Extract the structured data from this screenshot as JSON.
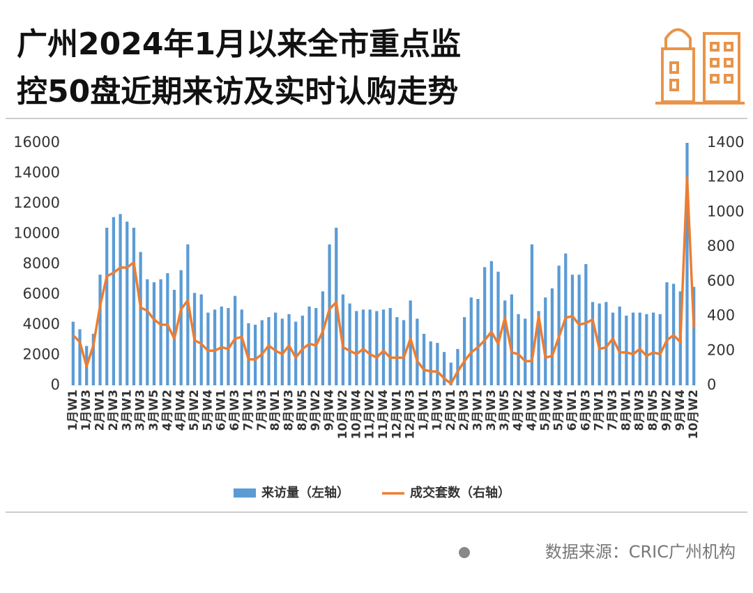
{
  "chart_data": {
    "type": "bar-line",
    "title": [
      "广州2024年1月以来全市重点监",
      "控50盘近期来访及实时认购走势"
    ],
    "source": "数据来源：CRIC广州机构",
    "categories": [
      "1月W1",
      null,
      "1月W3",
      null,
      "2月W1",
      null,
      "2月W3",
      null,
      "3月W1",
      null,
      "3月W3",
      null,
      "3月W5",
      null,
      "4月W2",
      null,
      "4月W4",
      null,
      "5月W2",
      null,
      "5月W4",
      null,
      "6月W1",
      null,
      "6月W3",
      null,
      "7月W1",
      null,
      "7月W3",
      null,
      "8月W1",
      null,
      "8月W3",
      null,
      "8月W5",
      null,
      "9月W2",
      null,
      "9月W4",
      null,
      "10月W2",
      null,
      "10月W4",
      null,
      "11月W2",
      null,
      "11月W4",
      null,
      "12月W1",
      null,
      "12月W3",
      null,
      "1月W1",
      null,
      "1月W3",
      null,
      "2月W1",
      null,
      "2月W3",
      null,
      "3月W1",
      null,
      "3月W3",
      null,
      "3月W5",
      null,
      "4月W2",
      null,
      "4月W4",
      null,
      "5月W2",
      null,
      "5月W4",
      null,
      "6月W1",
      null,
      "6月W3",
      null,
      "7月W1",
      null,
      "7月W3",
      null,
      "8月W1",
      null,
      "8月W3",
      null,
      "8月W5",
      null,
      "9月W2",
      null,
      "9月W4",
      null,
      "10月W2"
    ],
    "series": [
      {
        "name": "来访量（左轴）",
        "color": "#5b9bd5",
        "kind": "bar",
        "values": [
          4200,
          3700,
          2600,
          3400,
          7300,
          10400,
          11100,
          11300,
          10800,
          10400,
          8800,
          7000,
          6800,
          7000,
          7400,
          6300,
          7600,
          9300,
          6100,
          6000,
          4800,
          5000,
          5200,
          5100,
          5900,
          5000,
          4100,
          4000,
          4300,
          4500,
          4800,
          4400,
          4700,
          4200,
          4600,
          5200,
          5100,
          6200,
          9300,
          10400,
          6000,
          5400,
          4900,
          5000,
          5000,
          4900,
          5000,
          5100,
          4500,
          4300,
          5600,
          4400,
          3400,
          2900,
          2800,
          2200,
          1500,
          2400,
          4500,
          5800,
          5700,
          7800,
          8200,
          7500,
          5600,
          6000,
          4700,
          4400,
          9300,
          4900,
          5800,
          6400,
          7900,
          8700,
          7300,
          7300,
          8000,
          5500,
          5400,
          5500,
          4800,
          5200,
          4600,
          4800,
          4800,
          4700,
          4800,
          4700,
          6800,
          6700,
          6200,
          16000,
          6500
        ]
      },
      {
        "name": "成交套数（右轴）",
        "color": "#ed7d31",
        "kind": "line",
        "axis": "y2",
        "values": [
          290,
          250,
          110,
          230,
          460,
          630,
          650,
          680,
          680,
          710,
          450,
          430,
          380,
          350,
          350,
          270,
          440,
          490,
          260,
          240,
          200,
          200,
          220,
          210,
          270,
          280,
          150,
          150,
          180,
          230,
          200,
          180,
          230,
          160,
          210,
          240,
          230,
          310,
          440,
          480,
          220,
          200,
          180,
          210,
          180,
          160,
          200,
          160,
          160,
          160,
          270,
          140,
          90,
          80,
          80,
          40,
          10,
          80,
          140,
          190,
          220,
          260,
          310,
          240,
          390,
          190,
          180,
          140,
          140,
          400,
          160,
          170,
          280,
          390,
          400,
          350,
          360,
          380,
          210,
          220,
          270,
          190,
          190,
          180,
          210,
          170,
          190,
          180,
          260,
          290,
          250,
          1200,
          330
        ]
      }
    ],
    "ylim": [
      0,
      16000
    ],
    "yticks": [
      0,
      2000,
      4000,
      6000,
      8000,
      10000,
      12000,
      14000,
      16000
    ],
    "y2lim": [
      0,
      1400
    ],
    "y2ticks": [
      0,
      200,
      400,
      600,
      800,
      1000,
      1200,
      1400
    ]
  }
}
